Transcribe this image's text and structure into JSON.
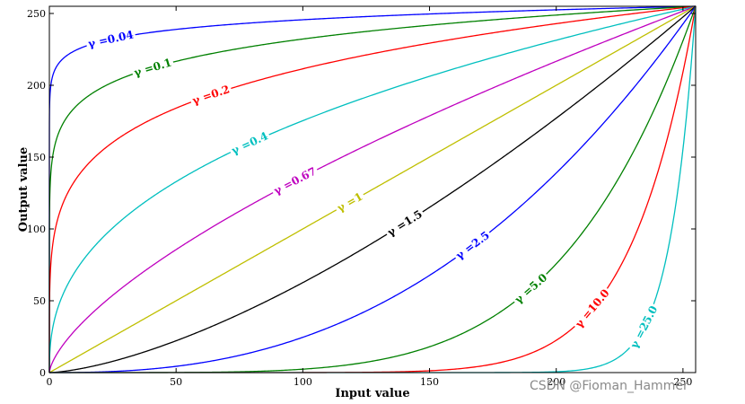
{
  "chart_data": {
    "type": "line",
    "title": "",
    "xlabel": "Input value",
    "ylabel": "Output value",
    "xlim": [
      0,
      255
    ],
    "ylim": [
      0,
      255
    ],
    "xticks": [
      0,
      50,
      100,
      150,
      200,
      250
    ],
    "yticks": [
      0,
      50,
      100,
      150,
      200,
      250
    ],
    "grid": false,
    "function": "y = 255 * (x / 255) ^ gamma",
    "series": [
      {
        "label": "γ =0.04",
        "gamma": 0.04,
        "color": "#0000ff"
      },
      {
        "label": "γ =0.1",
        "gamma": 0.1,
        "color": "#008000"
      },
      {
        "label": "γ =0.2",
        "gamma": 0.2,
        "color": "#ff0000"
      },
      {
        "label": "γ =0.4",
        "gamma": 0.4,
        "color": "#00bfbf"
      },
      {
        "label": "γ =0.67",
        "gamma": 0.67,
        "color": "#bf00bf"
      },
      {
        "label": "γ =1",
        "gamma": 1,
        "color": "#bfbf00"
      },
      {
        "label": "γ =1.5",
        "gamma": 1.5,
        "color": "#000000"
      },
      {
        "label": "γ =2.5",
        "gamma": 2.5,
        "color": "#0000ff"
      },
      {
        "label": "γ =5.0",
        "gamma": 5.0,
        "color": "#008000"
      },
      {
        "label": "γ =10.0",
        "gamma": 10.0,
        "color": "#ff0000"
      },
      {
        "label": "γ =25.0",
        "gamma": 25.0,
        "color": "#00bfbf"
      }
    ]
  },
  "watermark": "CSDN @Fioman_Hammer"
}
